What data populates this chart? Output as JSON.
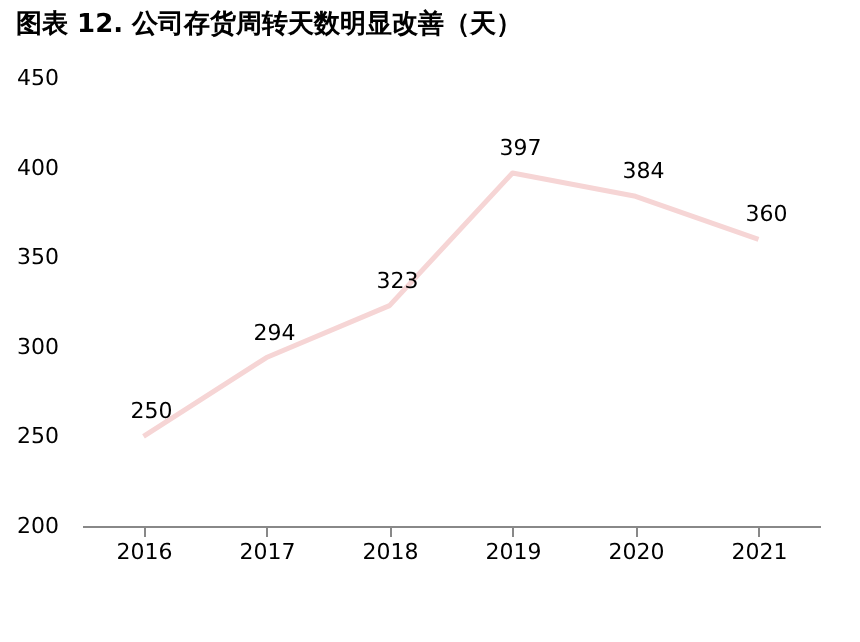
{
  "chart_data": {
    "type": "line",
    "title": "图表 12. 公司存货周转天数明显改善（天）",
    "categories": [
      "2016",
      "2017",
      "2018",
      "2019",
      "2020",
      "2021"
    ],
    "series": [
      {
        "color": "#f6d5d5",
        "values": [
          250,
          294,
          323,
          397,
          384,
          360
        ]
      }
    ],
    "ylim": [
      200,
      450
    ],
    "yticks": [
      200,
      250,
      300,
      350,
      400,
      450
    ],
    "grid": false,
    "marker": "none",
    "line_style": "solid",
    "data_labels": true
  }
}
